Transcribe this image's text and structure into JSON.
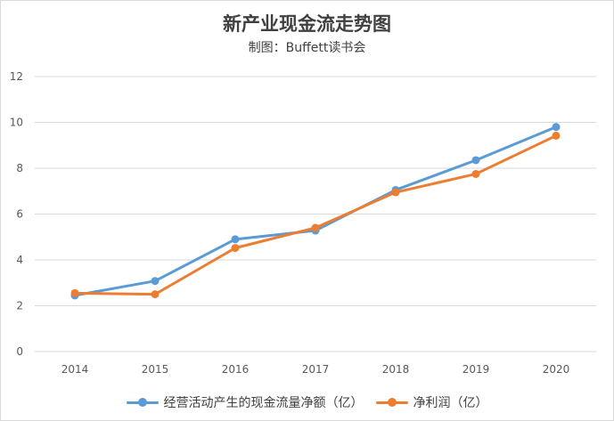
{
  "chart_data": {
    "type": "line",
    "title": "新产业现金流走势图",
    "subtitle": "制图：Buffett读书会",
    "categories": [
      "2014",
      "2015",
      "2016",
      "2017",
      "2018",
      "2019",
      "2020"
    ],
    "ylim": [
      0,
      12
    ],
    "yticks": [
      0,
      2,
      4,
      6,
      8,
      10,
      12
    ],
    "grid": true,
    "legend_position": "bottom",
    "series": [
      {
        "name": "经营活动产生的现金流量净额（亿）",
        "color": "#5b9bd5",
        "values": [
          2.45,
          3.08,
          4.9,
          5.28,
          7.05,
          8.35,
          9.8
        ]
      },
      {
        "name": "净利润（亿）",
        "color": "#ed7d31",
        "values": [
          2.55,
          2.5,
          4.52,
          5.4,
          6.95,
          7.75,
          9.42
        ]
      }
    ]
  }
}
